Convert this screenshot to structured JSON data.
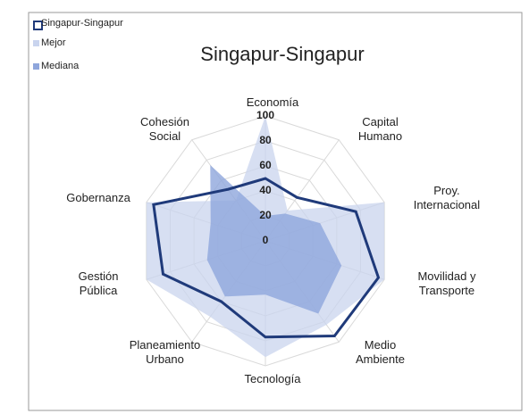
{
  "chart_data": {
    "type": "radar",
    "title": "Singapur-Singapur",
    "categories": [
      "Economía",
      "Capital Humano",
      "Proy. Internacional",
      "Movilidad y Transporte",
      "Medio Ambiente",
      "Tecnología",
      "Planeamiento Urbano",
      "Gestión Pública",
      "Gobernanza",
      "Cohesión Social"
    ],
    "series": [
      {
        "name": "Singapur-Singapur",
        "color": "#1f3a7a",
        "values": [
          50,
          43,
          76,
          95,
          94,
          77,
          60,
          86,
          94,
          51
        ]
      },
      {
        "name": "Mejor",
        "color": "#c9d4ee",
        "values": [
          100,
          30,
          100,
          100,
          83,
          93,
          75,
          100,
          100,
          40
        ]
      },
      {
        "name": "Mediana",
        "color": "#8fa6dc",
        "values": [
          20,
          27,
          46,
          64,
          72,
          43,
          55,
          49,
          46,
          75
        ]
      }
    ],
    "rlim": [
      0,
      100
    ],
    "rticks": [
      0,
      20,
      40,
      60,
      80,
      100
    ],
    "grid": true
  }
}
